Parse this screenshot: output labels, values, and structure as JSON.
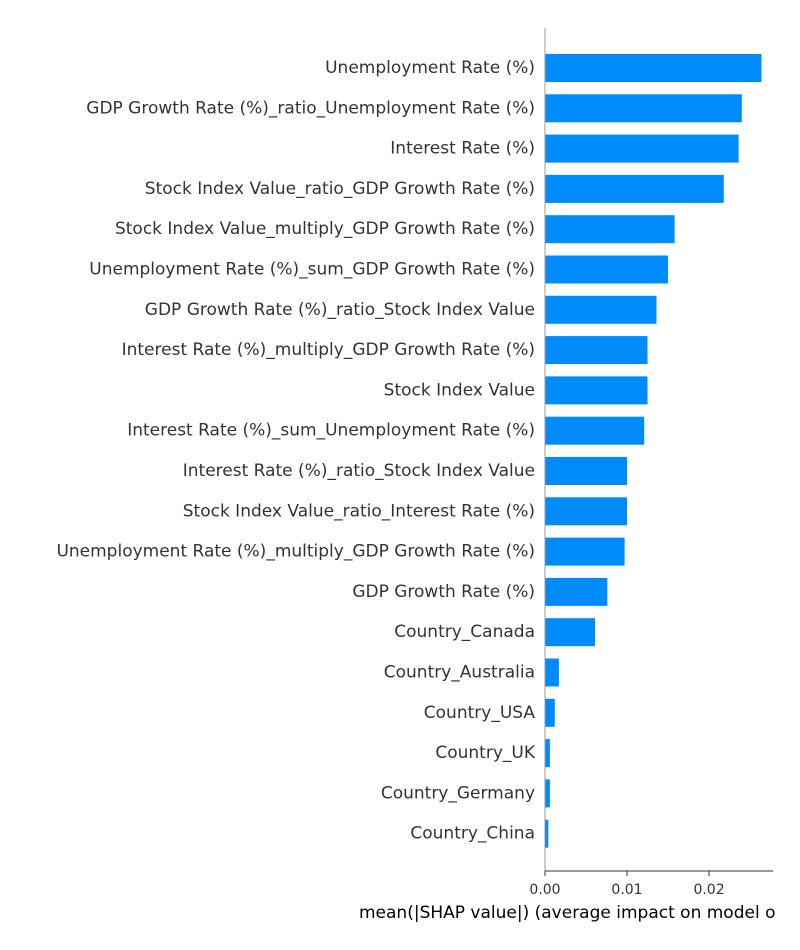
{
  "chart_data": {
    "type": "bar",
    "orientation": "horizontal",
    "title": "",
    "xlabel": "mean(|SHAP value|) (average impact on model o",
    "ylabel": "",
    "grid": false,
    "xlim": [
      0,
      0.0278
    ],
    "xticks": [
      0.0,
      0.01,
      0.02
    ],
    "xtick_labels": [
      "0.00",
      "0.01",
      "0.02"
    ],
    "bar_color": "#008bfb",
    "categories": [
      "Unemployment Rate (%)",
      "GDP Growth Rate (%)_ratio_Unemployment Rate (%)",
      "Interest Rate (%)",
      "Stock Index Value_ratio_GDP Growth Rate (%)",
      "Stock Index Value_multiply_GDP Growth Rate (%)",
      "Unemployment Rate (%)_sum_GDP Growth Rate (%)",
      "GDP Growth Rate (%)_ratio_Stock Index Value",
      "Interest Rate (%)_multiply_GDP Growth Rate (%)",
      "Stock Index Value",
      "Interest Rate (%)_sum_Unemployment Rate (%)",
      "Interest Rate (%)_ratio_Stock Index Value",
      "Stock Index Value_ratio_Interest Rate (%)",
      "Unemployment Rate (%)_multiply_GDP Growth Rate (%)",
      "GDP Growth Rate (%)",
      "Country_Canada",
      "Country_Australia",
      "Country_USA",
      "Country_UK",
      "Country_Germany",
      "Country_China"
    ],
    "values": [
      0.0264,
      0.024,
      0.0236,
      0.0218,
      0.0158,
      0.015,
      0.0136,
      0.0125,
      0.0125,
      0.0121,
      0.01,
      0.01,
      0.0097,
      0.0076,
      0.0061,
      0.0017,
      0.0012,
      0.0006,
      0.0006,
      0.0004
    ]
  }
}
